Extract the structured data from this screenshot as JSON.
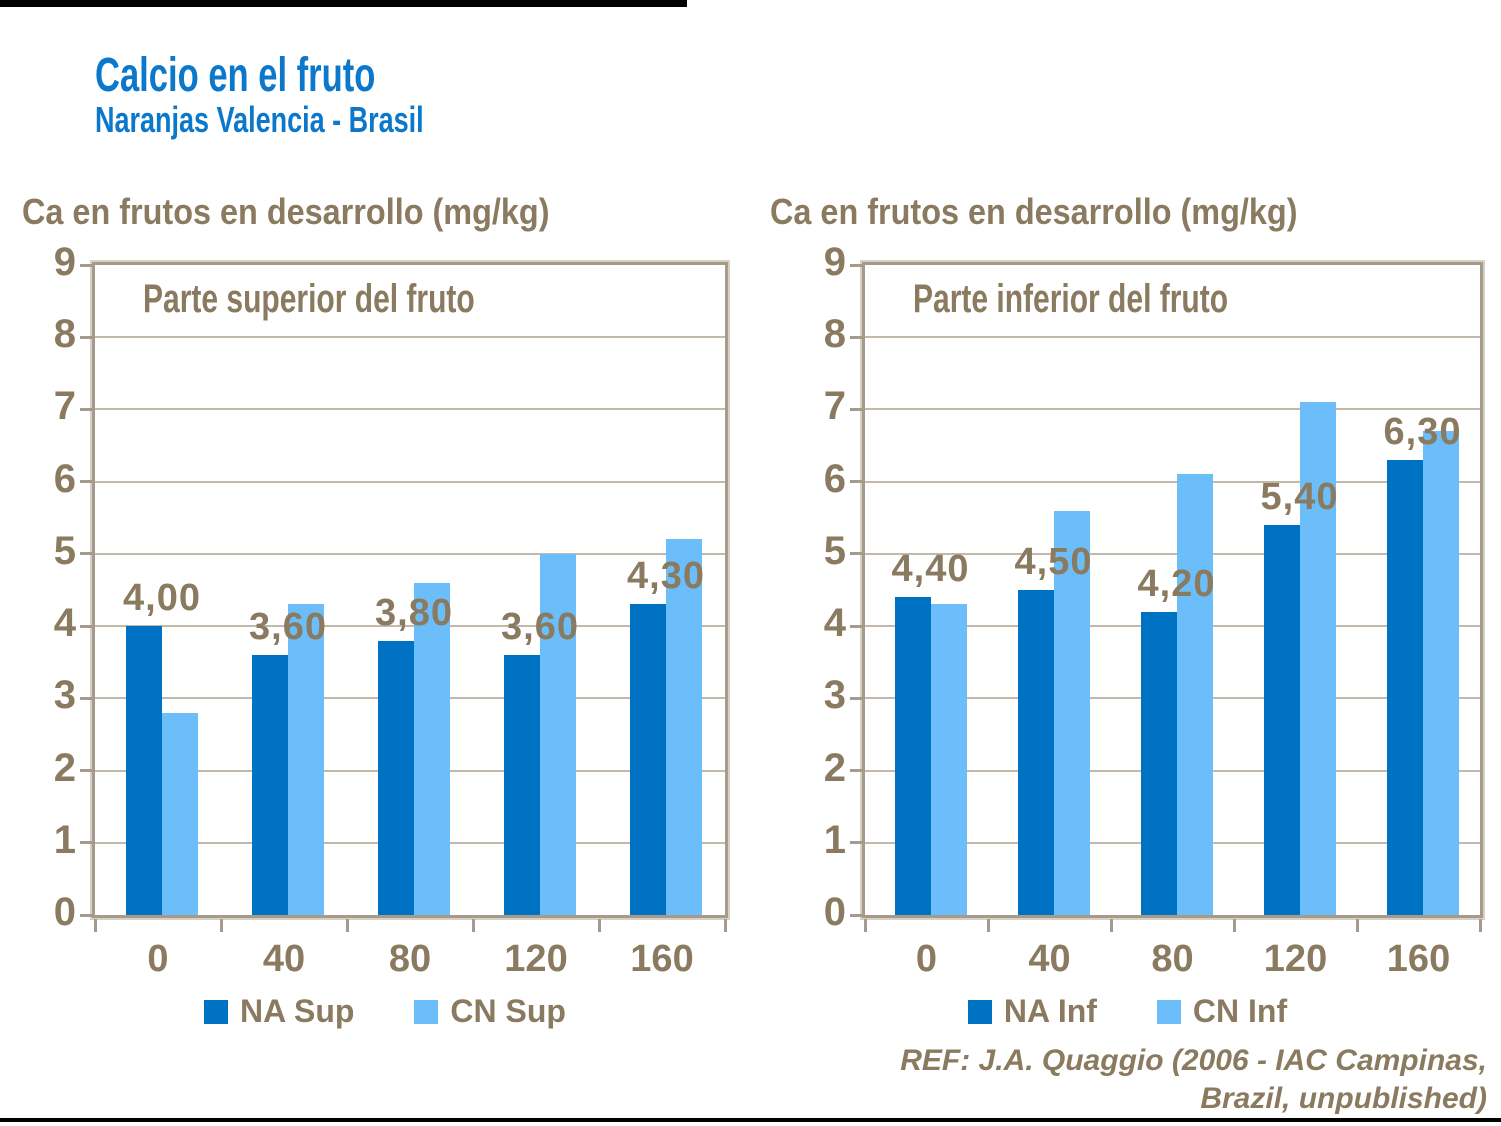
{
  "page": {
    "title": "Calcio en el fruto",
    "subtitle": "Naranjas Valencia - Brasil",
    "ref_line1": "REF: J.A. Quaggio (2006 - IAC Campinas,",
    "ref_line2": "Brazil, unpublished)"
  },
  "colors": {
    "na_series": "#0072c4",
    "cn_series": "#6cbefa",
    "title_blue": "#0c78cc",
    "text_brown": "#8a7a5f",
    "gridline": "#c2b9ab",
    "frame_dark": "#a69a8a",
    "frame_light": "#d8d0c4"
  },
  "chart_data": [
    {
      "type": "bar",
      "title": "Ca en frutos en desarrollo (mg/kg)",
      "inner_title": "Parte superior del fruto",
      "categories": [
        "0",
        "40",
        "80",
        "120",
        "160"
      ],
      "series": [
        {
          "name": "NA Sup",
          "values": [
            4.0,
            3.6,
            3.8,
            3.6,
            4.3
          ],
          "labels": [
            "4,00",
            "3,60",
            "3,80",
            "3,60",
            "4,30"
          ]
        },
        {
          "name": "CN Sup",
          "values": [
            2.8,
            4.3,
            4.6,
            5.0,
            5.2
          ]
        }
      ],
      "xlabel": "",
      "ylabel": "",
      "ylim": [
        0,
        9
      ],
      "yticks": [
        0,
        1,
        2,
        3,
        4,
        5,
        6,
        7,
        8,
        9
      ],
      "grid": true,
      "legend_position": "bottom"
    },
    {
      "type": "bar",
      "title": "Ca en frutos en desarrollo (mg/kg)",
      "inner_title": "Parte inferior del fruto",
      "categories": [
        "0",
        "40",
        "80",
        "120",
        "160"
      ],
      "series": [
        {
          "name": "NA Inf",
          "values": [
            4.4,
            4.5,
            4.2,
            5.4,
            6.3
          ],
          "labels": [
            "4,40",
            "4,50",
            "4,20",
            "5,40",
            "6,30"
          ]
        },
        {
          "name": "CN Inf",
          "values": [
            4.3,
            5.6,
            6.1,
            7.1,
            6.7
          ]
        }
      ],
      "xlabel": "",
      "ylabel": "",
      "ylim": [
        0,
        9
      ],
      "yticks": [
        0,
        1,
        2,
        3,
        4,
        5,
        6,
        7,
        8,
        9
      ],
      "grid": true,
      "legend_position": "bottom"
    }
  ]
}
